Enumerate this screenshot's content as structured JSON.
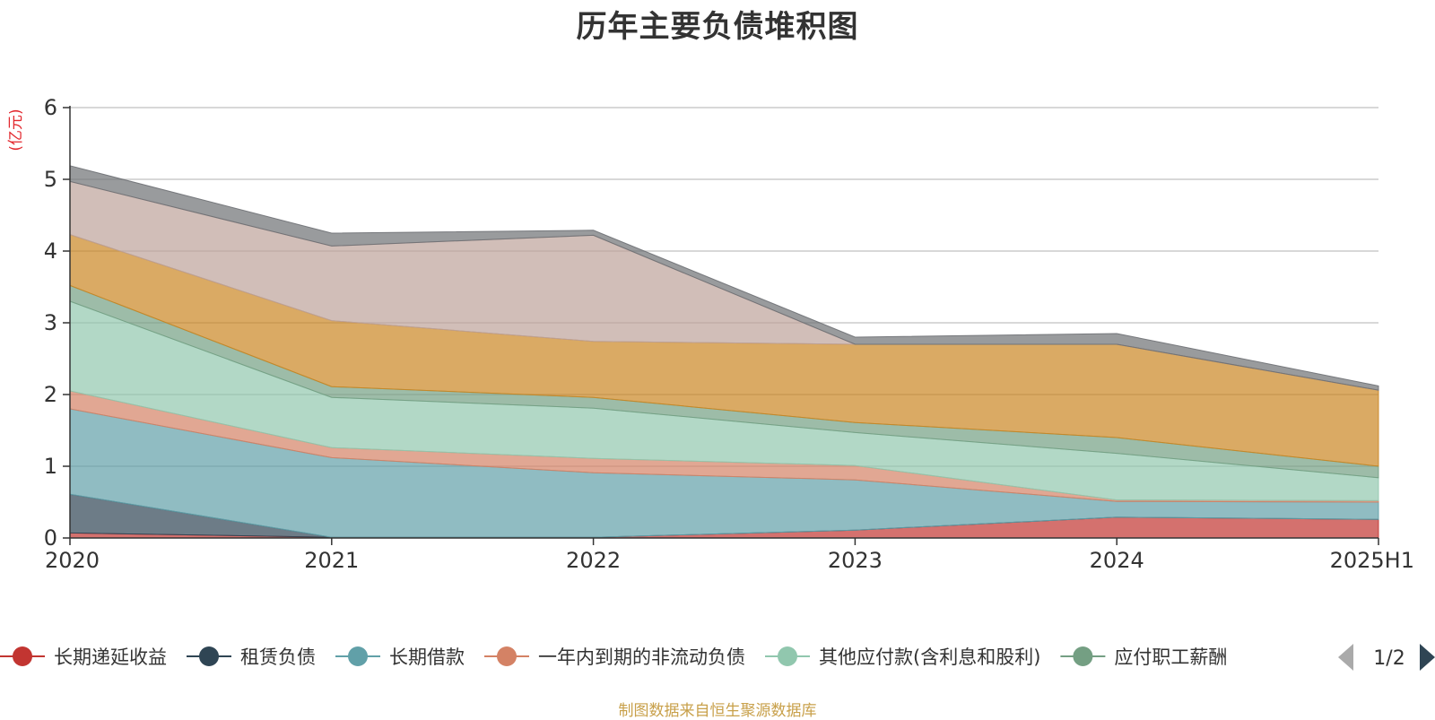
{
  "chart_data": {
    "type": "area",
    "stacked": true,
    "title": "历年主要负债堆积图",
    "unit": "(亿元)",
    "categories": [
      "2020",
      "2021",
      "2022",
      "2023",
      "2024",
      "2025H1"
    ],
    "ylim": [
      0,
      6
    ],
    "yticks": [
      "0",
      "1",
      "2",
      "3",
      "4",
      "5",
      "6"
    ],
    "grid": true,
    "series": [
      {
        "name": "长期递延收益",
        "color": "#c23531",
        "values": [
          0.07,
          0.01,
          0.01,
          0.11,
          0.29,
          0.26
        ]
      },
      {
        "name": "租赁负债",
        "color": "#2f4554",
        "values": [
          0.54,
          0.0,
          0.0,
          0.0,
          0.0,
          0.0
        ]
      },
      {
        "name": "长期借款",
        "color": "#61a0a8",
        "values": [
          1.19,
          1.11,
          0.9,
          0.7,
          0.22,
          0.24
        ]
      },
      {
        "name": "一年内到期的非流动负债",
        "color": "#d48265",
        "values": [
          0.25,
          0.14,
          0.2,
          0.2,
          0.02,
          0.02
        ]
      },
      {
        "name": "其他应付款(含利息和股利)",
        "color": "#91c7ae",
        "values": [
          1.25,
          0.7,
          0.7,
          0.46,
          0.65,
          0.32
        ]
      },
      {
        "name": "应付职工薪酬",
        "color": "#749f83",
        "values": [
          0.22,
          0.15,
          0.15,
          0.14,
          0.22,
          0.16
        ]
      },
      {
        "name": "",
        "color": "#ca8622",
        "values": [
          0.71,
          0.92,
          0.78,
          1.09,
          1.3,
          1.06
        ]
      },
      {
        "name": "",
        "color": "#bda29a",
        "values": [
          0.74,
          1.04,
          1.48,
          0.0,
          0.0,
          0.0
        ]
      },
      {
        "name": "",
        "color": "#6e7074",
        "values": [
          0.22,
          0.18,
          0.07,
          0.1,
          0.15,
          0.06
        ]
      }
    ],
    "legend": {
      "position": "bottom",
      "page": "1/2",
      "items": [
        "长期递延收益",
        "租赁负债",
        "长期借款",
        "一年内到期的非流动负债",
        "其他应付款(含利息和股利)",
        "应付职工薪酬"
      ]
    }
  },
  "footer": {
    "source": "制图数据来自恒生聚源数据库"
  }
}
